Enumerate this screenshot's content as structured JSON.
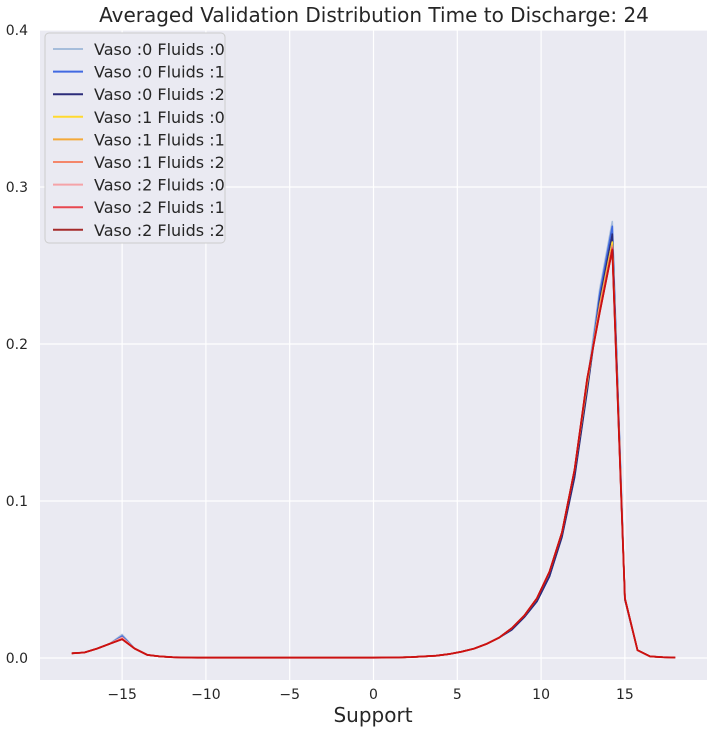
{
  "chart_data": {
    "type": "line",
    "title": "Averaged Validation Distribution Time to  Discharge: 24",
    "xlabel": "Support",
    "ylabel": "",
    "xlim": [
      -19.9,
      19.9
    ],
    "ylim": [
      -0.014,
      0.4
    ],
    "xticks": [
      -15,
      -10,
      -5,
      0,
      5,
      10,
      15
    ],
    "xtick_labels": [
      "−15",
      "−10",
      "−5",
      "0",
      "5",
      "10",
      "15"
    ],
    "yticks": [
      0.0,
      0.1,
      0.2,
      0.3,
      0.4
    ],
    "ytick_labels": [
      "0.0",
      "0.1",
      "0.2",
      "0.3",
      "0.4"
    ],
    "grid": true,
    "legend_position": "top-left",
    "x": [
      -18,
      -17.25,
      -16.5,
      -15.75,
      -15,
      -14.25,
      -13.5,
      -12.75,
      -12,
      -11.25,
      -10.5,
      -9.75,
      -9,
      -8.25,
      -7.5,
      -6.75,
      -6,
      -5.25,
      -4.5,
      -3.75,
      -3,
      -2.25,
      -1.5,
      -0.75,
      0,
      0.75,
      1.5,
      2.25,
      3,
      3.75,
      4.5,
      5.25,
      6,
      6.75,
      7.5,
      8.25,
      9,
      9.75,
      10.5,
      11.25,
      12,
      12.75,
      13.5,
      14.25,
      15,
      15.75,
      16.5,
      17.25,
      18
    ],
    "series": [
      {
        "name": "Vaso :0 Fluids :0",
        "color": "#a6bddb",
        "values": [
          0.003,
          0.0035,
          0.006,
          0.009,
          0.015,
          0.006,
          0.002,
          0.001,
          0.0005,
          0.0003,
          0.0002,
          0.0002,
          0.0002,
          0.0002,
          0.0002,
          0.0002,
          0.0002,
          0.0002,
          0.0002,
          0.0002,
          0.0002,
          0.0002,
          0.0002,
          0.0002,
          0.0002,
          0.0003,
          0.0004,
          0.0006,
          0.001,
          0.0015,
          0.0025,
          0.004,
          0.006,
          0.009,
          0.013,
          0.018,
          0.026,
          0.036,
          0.052,
          0.078,
          0.118,
          0.176,
          0.235,
          0.278,
          0.038,
          0.005,
          0.001,
          0.0005,
          0.0003
        ]
      },
      {
        "name": "Vaso :0 Fluids :1",
        "color": "#4169e1",
        "values": [
          0.003,
          0.0035,
          0.006,
          0.009,
          0.014,
          0.006,
          0.002,
          0.001,
          0.0005,
          0.0003,
          0.0002,
          0.0002,
          0.0002,
          0.0002,
          0.0002,
          0.0002,
          0.0002,
          0.0002,
          0.0002,
          0.0002,
          0.0002,
          0.0002,
          0.0002,
          0.0002,
          0.0002,
          0.0003,
          0.0004,
          0.0006,
          0.001,
          0.0015,
          0.0025,
          0.004,
          0.006,
          0.009,
          0.013,
          0.018,
          0.026,
          0.036,
          0.052,
          0.078,
          0.116,
          0.172,
          0.232,
          0.275,
          0.038,
          0.005,
          0.001,
          0.0005,
          0.0003
        ]
      },
      {
        "name": "Vaso :0 Fluids :2",
        "color": "#2c2c7a",
        "values": [
          0.003,
          0.0035,
          0.006,
          0.009,
          0.013,
          0.006,
          0.002,
          0.001,
          0.0005,
          0.0003,
          0.0002,
          0.0002,
          0.0002,
          0.0002,
          0.0002,
          0.0002,
          0.0002,
          0.0002,
          0.0002,
          0.0002,
          0.0002,
          0.0002,
          0.0002,
          0.0002,
          0.0002,
          0.0003,
          0.0004,
          0.0006,
          0.001,
          0.0015,
          0.0025,
          0.004,
          0.006,
          0.009,
          0.013,
          0.018,
          0.026,
          0.036,
          0.052,
          0.077,
          0.115,
          0.17,
          0.228,
          0.27,
          0.037,
          0.005,
          0.001,
          0.0005,
          0.0003
        ]
      },
      {
        "name": "Vaso :1 Fluids :0",
        "color": "#ffd92f",
        "values": [
          0.003,
          0.0035,
          0.006,
          0.009,
          0.013,
          0.006,
          0.002,
          0.001,
          0.0005,
          0.0003,
          0.0002,
          0.0002,
          0.0002,
          0.0002,
          0.0002,
          0.0002,
          0.0002,
          0.0002,
          0.0002,
          0.0002,
          0.0002,
          0.0002,
          0.0002,
          0.0002,
          0.0002,
          0.0003,
          0.0004,
          0.0006,
          0.001,
          0.0015,
          0.0025,
          0.004,
          0.006,
          0.009,
          0.013,
          0.019,
          0.027,
          0.038,
          0.055,
          0.08,
          0.12,
          0.175,
          0.225,
          0.265,
          0.038,
          0.005,
          0.001,
          0.0005,
          0.0003
        ]
      },
      {
        "name": "Vaso :1 Fluids :1",
        "color": "#f4a939",
        "values": [
          0.003,
          0.0035,
          0.006,
          0.009,
          0.013,
          0.006,
          0.002,
          0.001,
          0.0005,
          0.0003,
          0.0002,
          0.0002,
          0.0002,
          0.0002,
          0.0002,
          0.0002,
          0.0002,
          0.0002,
          0.0002,
          0.0002,
          0.0002,
          0.0002,
          0.0002,
          0.0002,
          0.0002,
          0.0003,
          0.0004,
          0.0006,
          0.001,
          0.0015,
          0.0025,
          0.004,
          0.006,
          0.009,
          0.013,
          0.019,
          0.027,
          0.038,
          0.055,
          0.08,
          0.12,
          0.176,
          0.224,
          0.263,
          0.038,
          0.005,
          0.001,
          0.0005,
          0.0003
        ]
      },
      {
        "name": "Vaso :1 Fluids :2",
        "color": "#f4866a",
        "values": [
          0.003,
          0.0035,
          0.006,
          0.009,
          0.013,
          0.006,
          0.002,
          0.001,
          0.0005,
          0.0003,
          0.0002,
          0.0002,
          0.0002,
          0.0002,
          0.0002,
          0.0002,
          0.0002,
          0.0002,
          0.0002,
          0.0002,
          0.0002,
          0.0002,
          0.0002,
          0.0002,
          0.0002,
          0.0003,
          0.0004,
          0.0006,
          0.001,
          0.0015,
          0.0025,
          0.004,
          0.006,
          0.009,
          0.013,
          0.019,
          0.027,
          0.038,
          0.055,
          0.08,
          0.12,
          0.177,
          0.223,
          0.262,
          0.038,
          0.005,
          0.001,
          0.0005,
          0.0003
        ]
      },
      {
        "name": "Vaso :2 Fluids :0",
        "color": "#f5a3a8",
        "values": [
          0.003,
          0.0035,
          0.006,
          0.009,
          0.013,
          0.006,
          0.002,
          0.001,
          0.0005,
          0.0003,
          0.0002,
          0.0002,
          0.0002,
          0.0002,
          0.0002,
          0.0002,
          0.0002,
          0.0002,
          0.0002,
          0.0002,
          0.0002,
          0.0002,
          0.0002,
          0.0002,
          0.0002,
          0.0003,
          0.0004,
          0.0006,
          0.001,
          0.0015,
          0.0025,
          0.004,
          0.006,
          0.009,
          0.013,
          0.019,
          0.027,
          0.038,
          0.055,
          0.08,
          0.12,
          0.177,
          0.222,
          0.261,
          0.038,
          0.005,
          0.001,
          0.0005,
          0.0003
        ]
      },
      {
        "name": "Vaso :2 Fluids :1",
        "color": "#e8474f",
        "values": [
          0.003,
          0.0035,
          0.006,
          0.009,
          0.012,
          0.006,
          0.002,
          0.001,
          0.0005,
          0.0003,
          0.0002,
          0.0002,
          0.0002,
          0.0002,
          0.0002,
          0.0002,
          0.0002,
          0.0002,
          0.0002,
          0.0002,
          0.0002,
          0.0002,
          0.0002,
          0.0002,
          0.0002,
          0.0003,
          0.0004,
          0.0006,
          0.001,
          0.0015,
          0.0025,
          0.004,
          0.006,
          0.009,
          0.013,
          0.019,
          0.027,
          0.038,
          0.055,
          0.08,
          0.12,
          0.178,
          0.221,
          0.261,
          0.038,
          0.005,
          0.001,
          0.0005,
          0.0003
        ]
      },
      {
        "name": "Vaso :2 Fluids :2",
        "color": "#a52a2a",
        "values": [
          0.003,
          0.0035,
          0.006,
          0.009,
          0.012,
          0.006,
          0.002,
          0.001,
          0.0005,
          0.0003,
          0.0002,
          0.0002,
          0.0002,
          0.0002,
          0.0002,
          0.0002,
          0.0002,
          0.0002,
          0.0002,
          0.0002,
          0.0002,
          0.0002,
          0.0002,
          0.0002,
          0.0002,
          0.0003,
          0.0004,
          0.0006,
          0.001,
          0.0015,
          0.0025,
          0.004,
          0.006,
          0.009,
          0.013,
          0.019,
          0.027,
          0.038,
          0.055,
          0.08,
          0.12,
          0.178,
          0.22,
          0.26,
          0.038,
          0.005,
          0.001,
          0.0005,
          0.0003
        ]
      }
    ],
    "overlay": {
      "name": "",
      "color": "#cc1111",
      "values": [
        0.003,
        0.0035,
        0.006,
        0.009,
        0.012,
        0.006,
        0.002,
        0.001,
        0.0005,
        0.0003,
        0.0002,
        0.0002,
        0.0002,
        0.0002,
        0.0002,
        0.0002,
        0.0002,
        0.0002,
        0.0002,
        0.0002,
        0.0002,
        0.0002,
        0.0002,
        0.0002,
        0.0002,
        0.0003,
        0.0004,
        0.0006,
        0.001,
        0.0015,
        0.0025,
        0.004,
        0.006,
        0.009,
        0.013,
        0.019,
        0.027,
        0.038,
        0.055,
        0.08,
        0.12,
        0.178,
        0.22,
        0.26,
        0.038,
        0.005,
        0.001,
        0.0005,
        0.0003
      ]
    },
    "colors": {
      "background": "#eaeaf2",
      "grid": "#ffffff",
      "legend_bg": "#eaeaf2"
    }
  }
}
